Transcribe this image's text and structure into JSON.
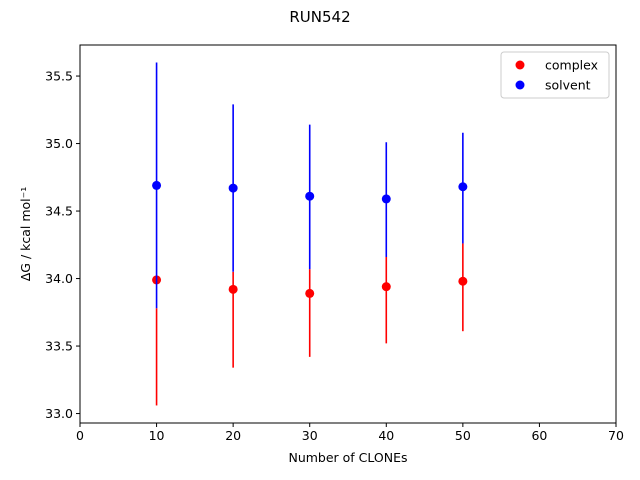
{
  "chart_data": {
    "type": "scatter",
    "title": "RUN542",
    "xlabel": "Number of CLONEs",
    "ylabel": "ΔG / kcal mol⁻¹",
    "xlim": [
      0,
      70
    ],
    "ylim": [
      32.93,
      35.73
    ],
    "xticks": [
      0,
      10,
      20,
      30,
      40,
      50,
      60,
      70
    ],
    "yticks": [
      33.0,
      33.5,
      34.0,
      34.5,
      35.0,
      35.5
    ],
    "grid": false,
    "legend_position": "top-right",
    "series": [
      {
        "name": "complex",
        "color": "#ff0000",
        "x": [
          10,
          20,
          30,
          40,
          50
        ],
        "y": [
          33.99,
          33.92,
          33.89,
          33.94,
          33.98
        ],
        "err_low": [
          33.06,
          33.34,
          33.42,
          33.52,
          33.61
        ],
        "err_high": [
          33.78,
          34.05,
          34.07,
          34.16,
          34.26
        ]
      },
      {
        "name": "solvent",
        "color": "#0000ff",
        "x": [
          10,
          20,
          30,
          40,
          50
        ],
        "y": [
          34.69,
          34.67,
          34.61,
          34.59,
          34.68
        ],
        "err_low": [
          33.78,
          34.05,
          34.07,
          34.16,
          34.26
        ],
        "err_high": [
          35.6,
          35.29,
          35.14,
          35.01,
          35.08
        ]
      }
    ]
  }
}
